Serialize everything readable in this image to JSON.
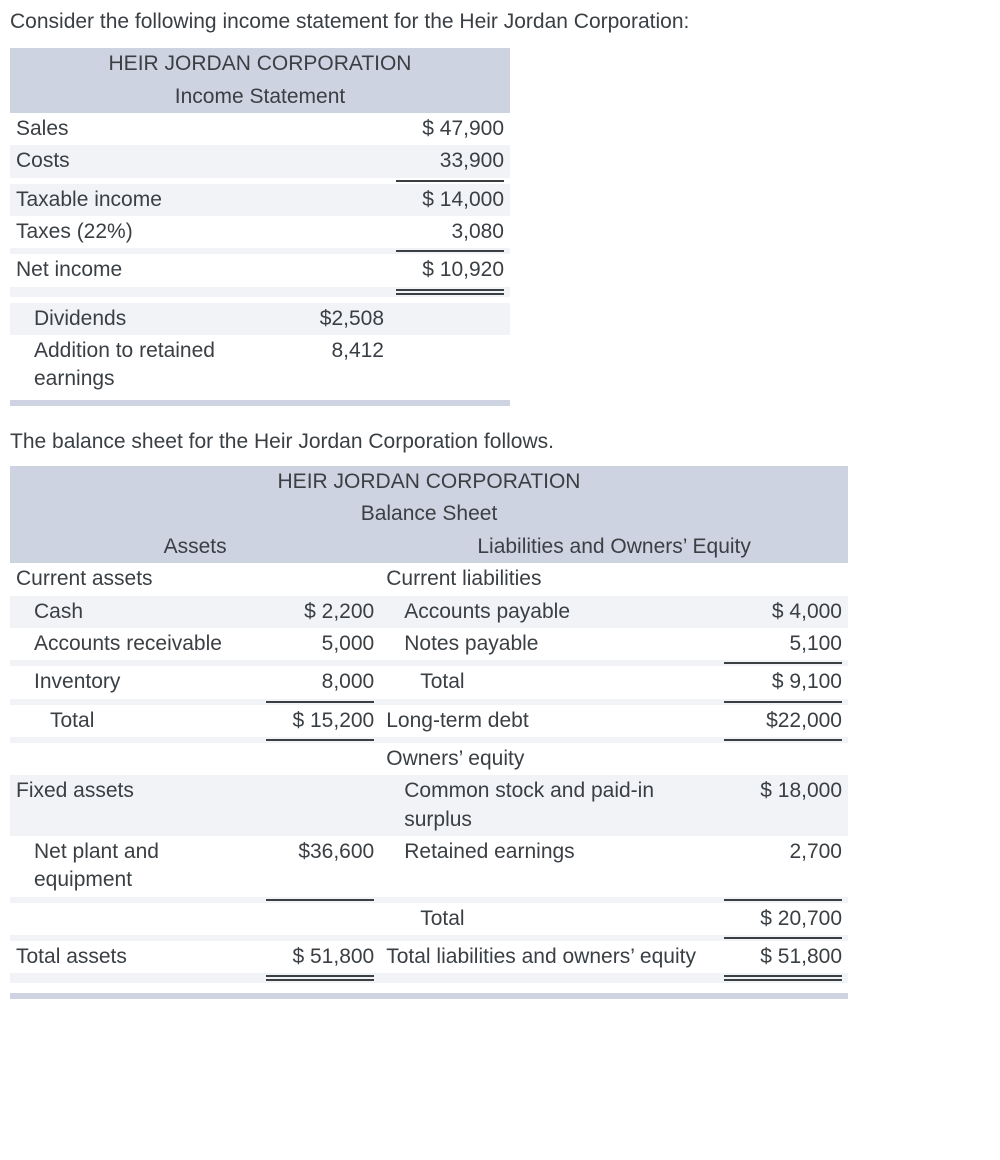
{
  "intro_text": "Consider the following income statement for the Heir Jordan Corporation:",
  "mid_text": "The balance sheet for the Heir Jordan Corporation follows.",
  "income_statement": {
    "title_line1": "HEIR JORDAN CORPORATION",
    "title_line2": "Income Statement",
    "rows": {
      "sales_label": "Sales",
      "sales_amount": "$ 47,900",
      "costs_label": "Costs",
      "costs_amount": "33,900",
      "taxable_label": "Taxable income",
      "taxable_amount": "$ 14,000",
      "taxes_label": "Taxes (22%)",
      "taxes_amount": "3,080",
      "net_label": "Net income",
      "net_amount": "$ 10,920",
      "div_label": "Dividends",
      "div_amount": "$2,508",
      "are_label": "Addition to retained earnings",
      "are_amount": "8,412"
    }
  },
  "balance_sheet": {
    "title_line1": "HEIR JORDAN CORPORATION",
    "title_line2": "Balance Sheet",
    "assets_header": "Assets",
    "liab_header": "Liabilities and Owners’ Equity",
    "labels": {
      "current_assets": "Current assets",
      "cash": "Cash",
      "ar": "Accounts receivable",
      "inventory": "Inventory",
      "total_ca": "Total",
      "fixed_assets": "Fixed assets",
      "npe": "Net plant and equipment",
      "total_assets": "Total assets",
      "current_liab": "Current liabilities",
      "ap": "Accounts payable",
      "np": "Notes payable",
      "total_cl": "Total",
      "ltd": "Long-term debt",
      "owners_eq": "Owners’ equity",
      "cspis": "Common stock and paid-in surplus",
      "re": "Retained earnings",
      "total_oe": "Total",
      "tloe": "Total liabilities and owners’ equity"
    },
    "values": {
      "cash": "$  2,200",
      "ar": "5,000",
      "inventory": "8,000",
      "total_ca": "$ 15,200",
      "npe": "$36,600",
      "total_assets": "$ 51,800",
      "ap": "$  4,000",
      "np": "5,100",
      "total_cl": "$   9,100",
      "ltd": "$22,000",
      "cspis": "$ 18,000",
      "re": "2,700",
      "total_oe": "$ 20,700",
      "tloe": "$ 51,800"
    }
  }
}
